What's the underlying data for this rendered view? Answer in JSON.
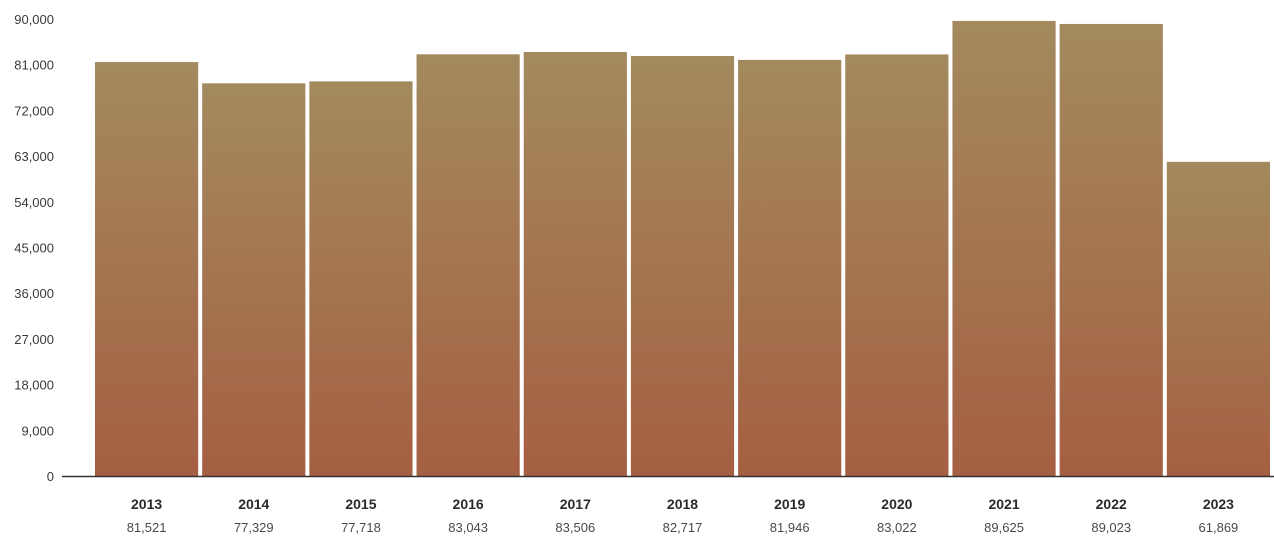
{
  "chart_data": {
    "type": "bar",
    "title": "",
    "xlabel": "",
    "ylabel": "",
    "categories": [
      "2013",
      "2014",
      "2015",
      "2016",
      "2017",
      "2018",
      "2019",
      "2020",
      "2021",
      "2022",
      "2023"
    ],
    "values": [
      81521,
      77329,
      77718,
      83043,
      83506,
      82717,
      81946,
      83022,
      89625,
      89023,
      61869
    ],
    "value_labels": [
      "81,521",
      "77,329",
      "77,718",
      "83,043",
      "83,506",
      "82,717",
      "81,946",
      "83,022",
      "89,625",
      "89,023",
      "61,869"
    ],
    "ylim": [
      0,
      90000
    ],
    "yticks": [
      0,
      9000,
      18000,
      27000,
      36000,
      45000,
      54000,
      63000,
      72000,
      81000,
      90000
    ],
    "ytick_labels": [
      "0",
      "9,000",
      "18,000",
      "27,000",
      "36,000",
      "45,000",
      "54,000",
      "63,000",
      "72,000",
      "81,000",
      "90,000"
    ],
    "grid": false,
    "legend": "none",
    "colors": {
      "bar_top": "#a38a5e",
      "bar_bottom": "#a55f43",
      "axis": "#333333"
    }
  }
}
